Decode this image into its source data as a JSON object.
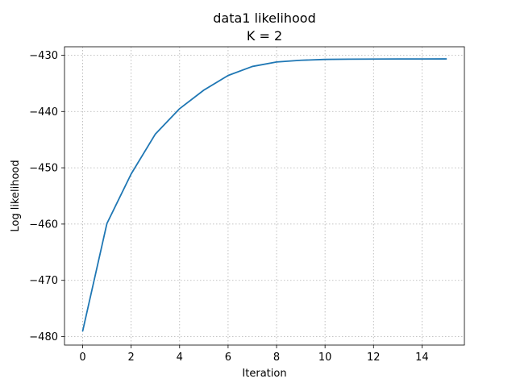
{
  "chart_data": {
    "type": "line",
    "title": "data1 likelihood",
    "subtitle": "K = 2",
    "xlabel": "Iteration",
    "ylabel": "Log likelihood",
    "xlim": [
      -0.75,
      15.75
    ],
    "ylim": [
      -481.5,
      -428.5
    ],
    "xticks": [
      0,
      2,
      4,
      6,
      8,
      10,
      12,
      14
    ],
    "yticks": [
      -480,
      -470,
      -460,
      -450,
      -440,
      -430
    ],
    "xtick_labels": [
      "0",
      "2",
      "4",
      "6",
      "8",
      "10",
      "12",
      "14"
    ],
    "ytick_labels": [
      "−480",
      "−470",
      "−460",
      "−450",
      "−440",
      "−430"
    ],
    "grid": true,
    "series": [
      {
        "color": "#1f77b4",
        "x": [
          0,
          1,
          2,
          3,
          4,
          5,
          6,
          7,
          8,
          9,
          10,
          11,
          12,
          13,
          14,
          15
        ],
        "y": [
          -479.0,
          -459.9,
          -451.1,
          -444.0,
          -439.5,
          -436.2,
          -433.6,
          -432.0,
          -431.2,
          -430.9,
          -430.75,
          -430.7,
          -430.68,
          -430.67,
          -430.67,
          -430.66
        ]
      }
    ]
  }
}
